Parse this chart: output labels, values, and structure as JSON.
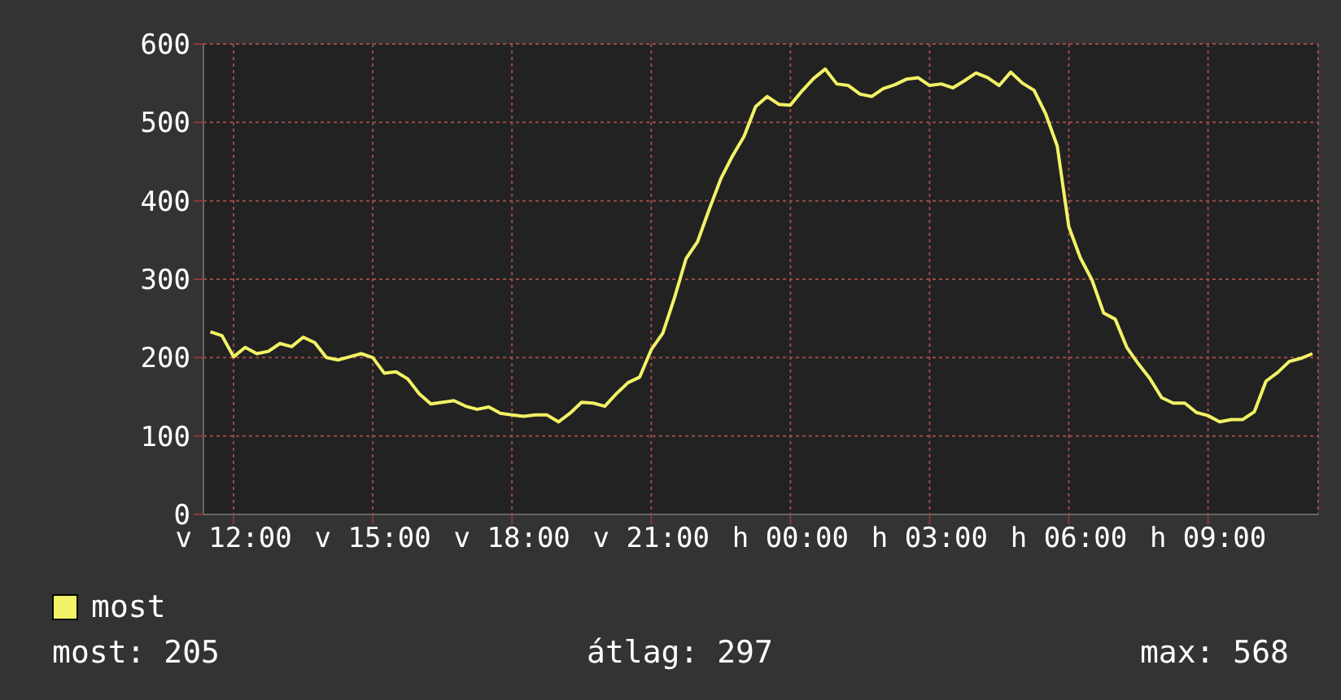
{
  "chart_data": {
    "type": "line",
    "categories": [
      null,
      null,
      "v 12:00",
      null,
      null,
      null,
      null,
      null,
      null,
      null,
      null,
      null,
      null,
      null,
      "v 15:00",
      null,
      null,
      null,
      null,
      null,
      null,
      null,
      null,
      null,
      null,
      null,
      "v 18:00",
      null,
      null,
      null,
      null,
      null,
      null,
      null,
      null,
      null,
      null,
      null,
      "v 21:00",
      null,
      null,
      null,
      null,
      null,
      null,
      null,
      null,
      null,
      null,
      null,
      "h 00:00",
      null,
      null,
      null,
      null,
      null,
      null,
      null,
      null,
      null,
      null,
      null,
      "h 03:00",
      null,
      null,
      null,
      null,
      null,
      null,
      null,
      null,
      null,
      null,
      null,
      "h 06:00",
      null,
      null,
      null,
      null,
      null,
      null,
      null,
      null,
      null,
      null,
      null,
      "h 09:00",
      null,
      null,
      null,
      null,
      null,
      null,
      null,
      null,
      null
    ],
    "series": [
      {
        "name": "most",
        "color": "#f2f266",
        "values": [
          233,
          228,
          201,
          213,
          205,
          208,
          218,
          214,
          226,
          219,
          200,
          197,
          201,
          205,
          200,
          180,
          182,
          173,
          154,
          141,
          143,
          145,
          138,
          134,
          137,
          129,
          127,
          125,
          127,
          127,
          118,
          129,
          143,
          142,
          138,
          154,
          168,
          175,
          210,
          231,
          276,
          326,
          348,
          389,
          428,
          457,
          482,
          520,
          533,
          523,
          522,
          540,
          556,
          568,
          549,
          547,
          536,
          533,
          543,
          548,
          555,
          557,
          547,
          549,
          544,
          553,
          563,
          557,
          547,
          564,
          550,
          541,
          511,
          470,
          367,
          327,
          299,
          257,
          249,
          213,
          192,
          173,
          149,
          142,
          142,
          130,
          126,
          118,
          121,
          121,
          131,
          170,
          181,
          195,
          199,
          205
        ]
      }
    ],
    "ylim": [
      0,
      600
    ],
    "yticks": [
      0,
      100,
      200,
      300,
      400,
      500,
      600
    ],
    "grid": true,
    "legend": "bottom left",
    "marker": "none",
    "line_style": "solid",
    "annotations": [
      "most: 205",
      "átlag: 297",
      "max: 568"
    ]
  }
}
